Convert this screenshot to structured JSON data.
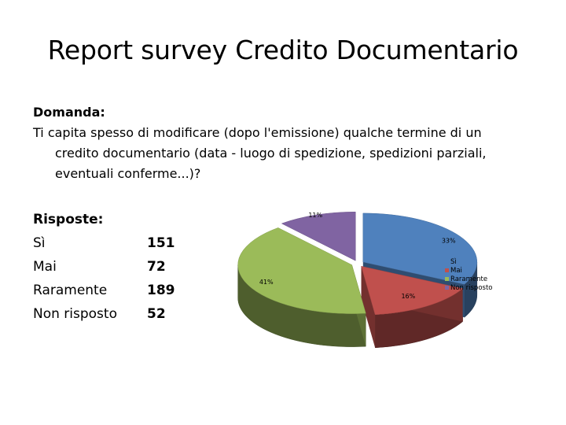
{
  "title": "Report survey Credito Documentario",
  "question": {
    "label": "Domanda:",
    "text": "Ti capita spesso di modificare (dopo l'emissione) qualche termine di un credito documentario (data - luogo di spedizione, spedizioni parziali, eventuali conferme...)?"
  },
  "answers": {
    "label": "Risposte:",
    "rows": [
      {
        "name": "Sì",
        "count": "151"
      },
      {
        "name": "Mai",
        "count": "72"
      },
      {
        "name": "Raramente",
        "count": "189"
      },
      {
        "name": "Non risposto",
        "count": "52"
      }
    ]
  },
  "chart_data": {
    "type": "pie",
    "style": "3d-exploded",
    "categories": [
      "Sì",
      "Mai",
      "Raramente",
      "Non risposto"
    ],
    "values": [
      151,
      72,
      189,
      52
    ],
    "percent_labels": [
      "33%",
      "16%",
      "41%",
      "11%"
    ],
    "colors": [
      "#4f81bd",
      "#c0504d",
      "#9bbb59",
      "#8064a2"
    ],
    "legend_position": "right"
  }
}
